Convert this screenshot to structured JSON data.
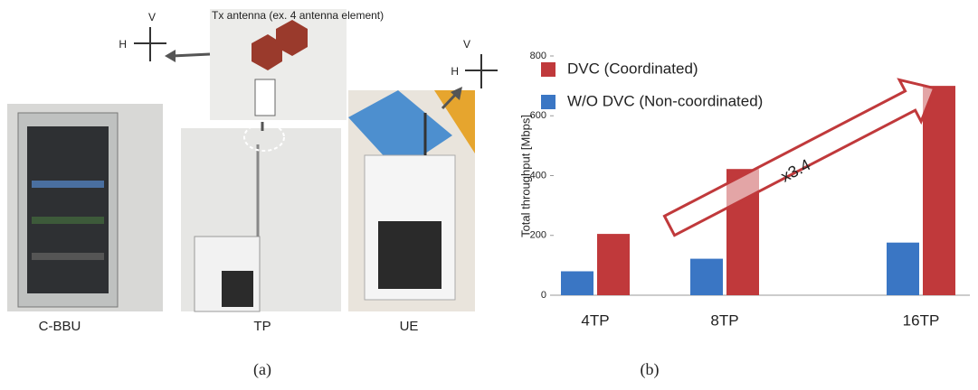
{
  "figure": {
    "antenna_label": "Tx antenna (ex. 4 antenna element)",
    "polarization": [
      {
        "v": "V",
        "h": "H"
      },
      {
        "v": "V",
        "h": "H"
      }
    ],
    "photos": [
      "C-BBU",
      "TP",
      "UE"
    ],
    "caption_a": "(a)",
    "caption_b": "(b)"
  },
  "chart_data": {
    "type": "bar",
    "y_label": "Total throughput [Mbps]",
    "categories": [
      "4TP",
      "8TP",
      "16TP"
    ],
    "series": [
      {
        "name": "W/O DVC (Non-coordinated)",
        "color": "#3a76c4",
        "values": [
          80,
          122,
          176
        ]
      },
      {
        "name": "DVC (Coordinated)",
        "color": "#c0393b",
        "values": [
          205,
          422,
          700
        ]
      }
    ],
    "ylim": [
      0,
      800
    ],
    "yticks": [
      0,
      200,
      400,
      600,
      800
    ],
    "annotation": "x3.4"
  }
}
